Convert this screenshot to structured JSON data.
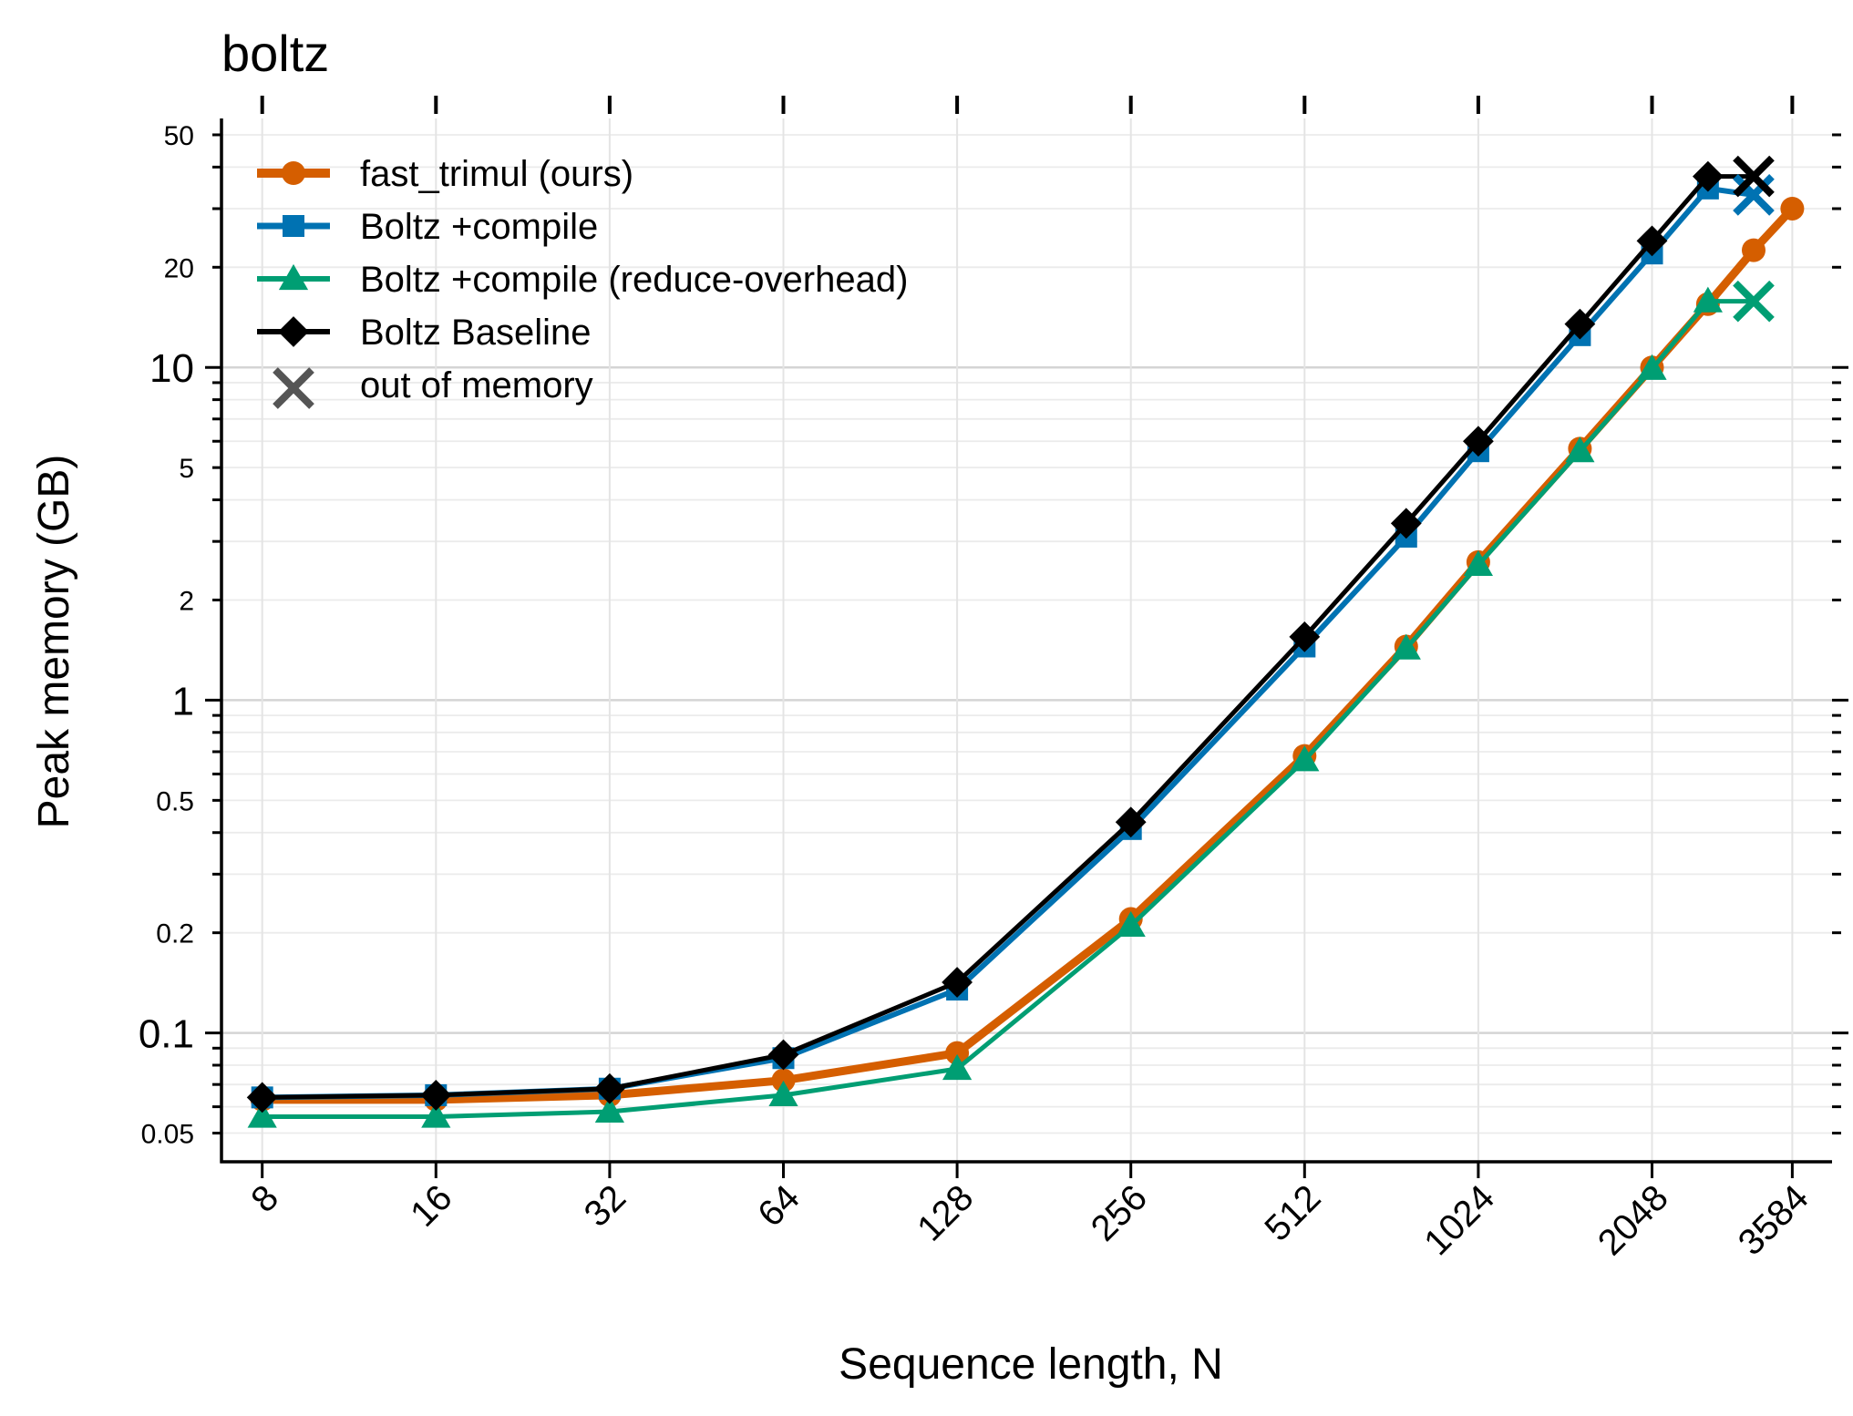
{
  "chart_data": {
    "type": "line",
    "title": "boltz",
    "xlabel": "Sequence length, N",
    "ylabel": "Peak memory (GB)",
    "xscale": "log2",
    "yscale": "log10",
    "xlim": [
      6.8,
      4200
    ],
    "ylim": [
      0.041,
      56
    ],
    "xticks": [
      8,
      16,
      32,
      64,
      128,
      256,
      512,
      1024,
      2048,
      3584
    ],
    "xtick_labels": [
      "8",
      "16",
      "32",
      "64",
      "128",
      "256",
      "512",
      "1024",
      "2048",
      "3584"
    ],
    "yticks_major": [
      0.1,
      1,
      10
    ],
    "ytick_major_labels": [
      "0.1",
      "1",
      "10"
    ],
    "yticks_minor_labeled": [
      0.05,
      0.2,
      0.5,
      2,
      5,
      20,
      50
    ],
    "ytick_minor_labels": [
      "0.05",
      "0.2",
      "0.5",
      "2",
      "5",
      "20",
      "50"
    ],
    "grid": true,
    "legend_position": "top-left",
    "series": [
      {
        "name": "fast_trimul (ours)",
        "color": "#d55e00",
        "marker": "circle",
        "x": [
          8,
          16,
          32,
          64,
          128,
          256,
          512,
          768,
          1024,
          1536,
          2048,
          2560,
          3072,
          3584
        ],
        "y": [
          0.063,
          0.063,
          0.065,
          0.072,
          0.087,
          0.22,
          0.68,
          1.45,
          2.6,
          5.7,
          10.0,
          15.5,
          22.5,
          30.0
        ]
      },
      {
        "name": "Boltz +compile",
        "color": "#0072b2",
        "marker": "square",
        "x": [
          8,
          16,
          32,
          64,
          128,
          256,
          512,
          768,
          1024,
          1536,
          2048,
          2560,
          3072
        ],
        "y": [
          0.064,
          0.065,
          0.068,
          0.084,
          0.135,
          0.41,
          1.45,
          3.1,
          5.6,
          12.5,
          22.0,
          34.5,
          33.0
        ]
      },
      {
        "name": "Boltz +compile (reduce-overhead)",
        "color": "#009e73",
        "marker": "triangle",
        "x": [
          8,
          16,
          32,
          64,
          128,
          256,
          512,
          768,
          1024,
          1536,
          2048,
          2560,
          3072
        ],
        "y": [
          0.056,
          0.056,
          0.058,
          0.065,
          0.078,
          0.21,
          0.66,
          1.43,
          2.55,
          5.6,
          9.9,
          15.8,
          15.8
        ]
      },
      {
        "name": "Boltz Baseline",
        "color": "#000000",
        "marker": "diamond",
        "x": [
          8,
          16,
          32,
          64,
          128,
          256,
          512,
          768,
          1024,
          1536,
          2048,
          2560,
          3072
        ],
        "y": [
          0.064,
          0.065,
          0.068,
          0.086,
          0.142,
          0.43,
          1.55,
          3.4,
          6.0,
          13.5,
          24.0,
          37.5,
          37.5
        ]
      }
    ],
    "oom_points": [
      {
        "series": "Boltz +compile",
        "x": 3072,
        "y": 33.0
      },
      {
        "series": "Boltz +compile (reduce-overhead)",
        "x": 3072,
        "y": 15.8
      },
      {
        "series": "Boltz Baseline",
        "x": 3072,
        "y": 37.5
      }
    ],
    "legend": [
      {
        "label": "fast_trimul (ours)",
        "color": "#d55e00",
        "marker": "circle"
      },
      {
        "label": "Boltz +compile",
        "color": "#0072b2",
        "marker": "square"
      },
      {
        "label": "Boltz +compile (reduce-overhead)",
        "color": "#009e73",
        "marker": "triangle"
      },
      {
        "label": "Boltz Baseline",
        "color": "#000000",
        "marker": "diamond"
      },
      {
        "label": "out of memory",
        "color": "#555555",
        "marker": "x"
      }
    ]
  }
}
